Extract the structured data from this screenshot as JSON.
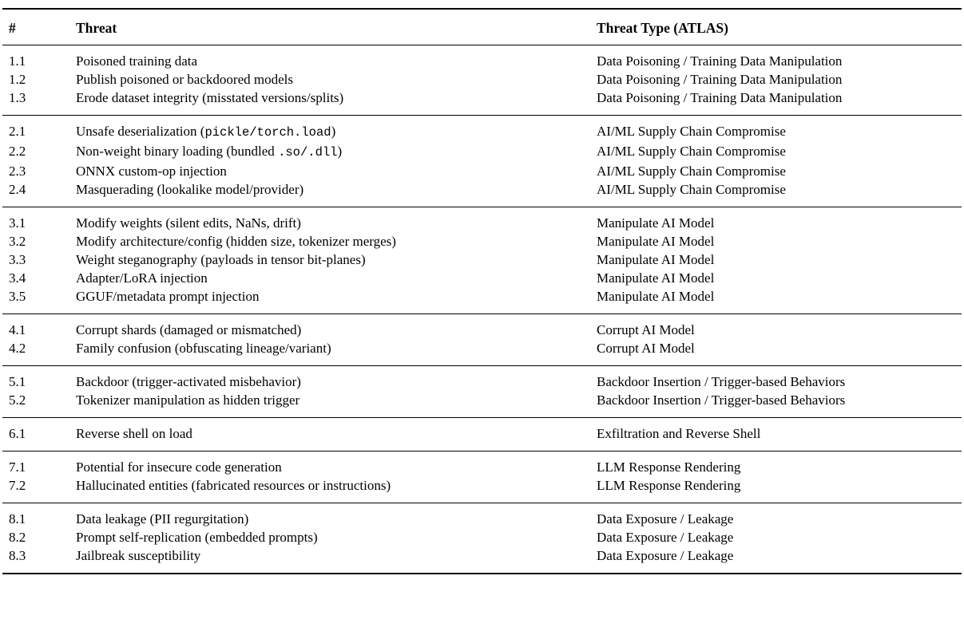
{
  "table": {
    "headers": {
      "num": "#",
      "threat": "Threat",
      "type": "Threat Type (ATLAS)"
    },
    "groups": [
      {
        "rows": [
          {
            "num": "1.1",
            "threat": "Poisoned training data",
            "type": "Data Poisoning / Training Data Manipulation"
          },
          {
            "num": "1.2",
            "threat": "Publish poisoned or backdoored models",
            "type": "Data Poisoning / Training Data Manipulation"
          },
          {
            "num": "1.3",
            "threat": "Erode dataset integrity (misstated versions/splits)",
            "type": "Data Poisoning / Training Data Manipulation"
          }
        ]
      },
      {
        "rows": [
          {
            "num": "2.1",
            "threat": [
              {
                "t": "Unsafe deserialization ("
              },
              {
                "t": "pickle/torch.load",
                "mono": true
              },
              {
                "t": ")"
              }
            ],
            "type": "AI/ML Supply Chain Compromise"
          },
          {
            "num": "2.2",
            "threat": [
              {
                "t": "Non-weight binary loading (bundled "
              },
              {
                "t": ".so/.dll",
                "mono": true
              },
              {
                "t": ")"
              }
            ],
            "type": "AI/ML Supply Chain Compromise"
          },
          {
            "num": "2.3",
            "threat": "ONNX custom-op injection",
            "type": "AI/ML Supply Chain Compromise"
          },
          {
            "num": "2.4",
            "threat": "Masquerading (lookalike model/provider)",
            "type": "AI/ML Supply Chain Compromise"
          }
        ]
      },
      {
        "rows": [
          {
            "num": "3.1",
            "threat": "Modify weights (silent edits, NaNs, drift)",
            "type": "Manipulate AI Model"
          },
          {
            "num": "3.2",
            "threat": "Modify architecture/config (hidden size, tokenizer merges)",
            "type": "Manipulate AI Model"
          },
          {
            "num": "3.3",
            "threat": "Weight steganography (payloads in tensor bit-planes)",
            "type": "Manipulate AI Model"
          },
          {
            "num": "3.4",
            "threat": "Adapter/LoRA injection",
            "type": "Manipulate AI Model"
          },
          {
            "num": "3.5",
            "threat": "GGUF/metadata prompt injection",
            "type": "Manipulate AI Model"
          }
        ]
      },
      {
        "rows": [
          {
            "num": "4.1",
            "threat": "Corrupt shards (damaged or mismatched)",
            "type": "Corrupt AI Model"
          },
          {
            "num": "4.2",
            "threat": "Family confusion (obfuscating lineage/variant)",
            "type": "Corrupt AI Model"
          }
        ]
      },
      {
        "rows": [
          {
            "num": "5.1",
            "threat": "Backdoor (trigger-activated misbehavior)",
            "type": "Backdoor Insertion / Trigger-based Behaviors"
          },
          {
            "num": "5.2",
            "threat": "Tokenizer manipulation as hidden trigger",
            "type": "Backdoor Insertion / Trigger-based Behaviors"
          }
        ]
      },
      {
        "rows": [
          {
            "num": "6.1",
            "threat": "Reverse shell on load",
            "type": "Exfiltration and Reverse Shell"
          }
        ]
      },
      {
        "rows": [
          {
            "num": "7.1",
            "threat": "Potential for insecure code generation",
            "type": "LLM Response Rendering"
          },
          {
            "num": "7.2",
            "threat": "Hallucinated entities (fabricated resources or instructions)",
            "type": "LLM Response Rendering"
          }
        ]
      },
      {
        "rows": [
          {
            "num": "8.1",
            "threat": "Data leakage (PII regurgitation)",
            "type": "Data Exposure / Leakage"
          },
          {
            "num": "8.2",
            "threat": "Prompt self-replication (embedded prompts)",
            "type": "Data Exposure / Leakage"
          },
          {
            "num": "8.3",
            "threat": "Jailbreak susceptibility",
            "type": "Data Exposure / Leakage"
          }
        ]
      }
    ]
  }
}
